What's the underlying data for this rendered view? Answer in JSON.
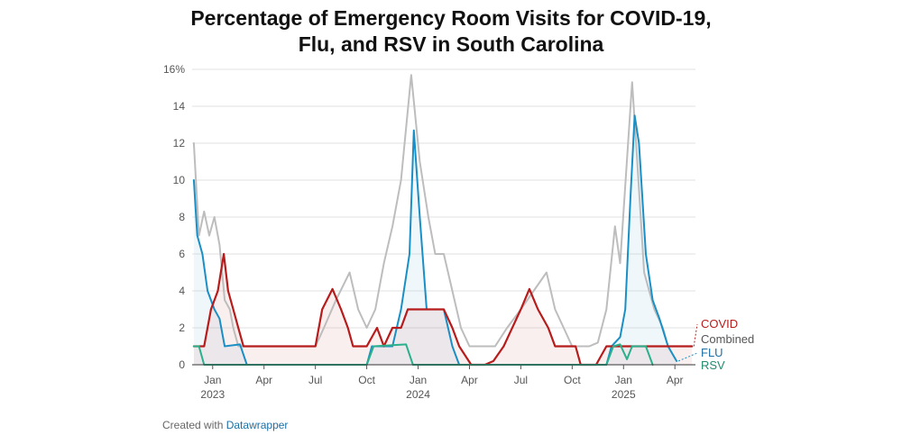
{
  "title_line1": "Percentage of Emergency Room Visits for COVID-19,",
  "title_line2": "Flu, and RSV in South Carolina",
  "footer": {
    "prefix": "Created with",
    "link": "Datawrapper"
  },
  "chart_data": {
    "type": "area",
    "title": "Percentage of Emergency Room Visits for COVID-19, Flu, and RSV in South Carolina",
    "ylim": [
      0,
      16
    ],
    "yticks": [
      0,
      2,
      4,
      6,
      8,
      10,
      12,
      14,
      16
    ],
    "ytick_labels": [
      "0",
      "2",
      "4",
      "6",
      "8",
      "10",
      "12",
      "14",
      "16%"
    ],
    "x_unit": "months since Oct 2022",
    "xlim": [
      1.8,
      31.2
    ],
    "xticks": [
      {
        "x": 3,
        "label": "Jan",
        "sub": "2023"
      },
      {
        "x": 6,
        "label": "Apr",
        "sub": ""
      },
      {
        "x": 9,
        "label": "Jul",
        "sub": ""
      },
      {
        "x": 12,
        "label": "Oct",
        "sub": ""
      },
      {
        "x": 15,
        "label": "Jan",
        "sub": "2024"
      },
      {
        "x": 18,
        "label": "Apr",
        "sub": ""
      },
      {
        "x": 21,
        "label": "Jul",
        "sub": ""
      },
      {
        "x": 24,
        "label": "Oct",
        "sub": ""
      },
      {
        "x": 27,
        "label": "Jan",
        "sub": "2025"
      },
      {
        "x": 30,
        "label": "Apr",
        "sub": ""
      }
    ],
    "series": [
      {
        "name": "Combined",
        "label": "Combined",
        "color": "#bdbdbd",
        "label_color": "#555555",
        "fill": false,
        "points": [
          [
            1.9,
            12
          ],
          [
            2.2,
            7
          ],
          [
            2.5,
            8.3
          ],
          [
            2.8,
            7
          ],
          [
            3.1,
            8
          ],
          [
            3.4,
            6.5
          ],
          [
            3.7,
            3.5
          ],
          [
            4,
            3
          ],
          [
            4.2,
            2
          ],
          [
            4.5,
            1
          ],
          [
            5.5,
            1
          ],
          [
            9,
            1
          ],
          [
            9.5,
            2
          ],
          [
            10.2,
            3.5
          ],
          [
            11,
            5
          ],
          [
            11.5,
            3
          ],
          [
            12,
            2
          ],
          [
            12.5,
            3
          ],
          [
            13,
            5.5
          ],
          [
            13.5,
            7.5
          ],
          [
            14,
            10
          ],
          [
            14.6,
            15.7
          ],
          [
            15.1,
            11
          ],
          [
            15.6,
            8
          ],
          [
            16,
            6
          ],
          [
            16.5,
            6
          ],
          [
            17,
            4
          ],
          [
            17.5,
            2
          ],
          [
            18,
            1
          ],
          [
            19.5,
            1
          ],
          [
            20.2,
            2
          ],
          [
            21,
            3
          ],
          [
            22.5,
            5
          ],
          [
            23,
            3
          ],
          [
            23.5,
            2
          ],
          [
            24,
            1
          ],
          [
            25,
            1
          ],
          [
            25.5,
            1.2
          ],
          [
            26,
            3
          ],
          [
            26.5,
            7.5
          ],
          [
            26.8,
            5.5
          ],
          [
            27.5,
            15.3
          ],
          [
            27.8,
            11
          ],
          [
            28.2,
            5
          ],
          [
            28.8,
            3
          ],
          [
            29.3,
            2
          ],
          [
            29.6,
            1
          ]
        ]
      },
      {
        "name": "FLU",
        "label": "FLU",
        "color": "#1a8fc5",
        "label_color": "#1d6fa5",
        "fill": true,
        "fill_color": "rgba(26,143,197,0.07)",
        "points": [
          [
            1.9,
            10
          ],
          [
            2.1,
            7
          ],
          [
            2.4,
            6
          ],
          [
            2.7,
            4
          ],
          [
            3.1,
            3
          ],
          [
            3.4,
            2.5
          ],
          [
            3.7,
            1
          ],
          [
            4.6,
            1.1
          ],
          [
            5,
            0
          ],
          [
            12,
            0
          ],
          [
            12.3,
            1
          ],
          [
            13.5,
            1
          ],
          [
            14,
            3
          ],
          [
            14.5,
            6
          ],
          [
            14.75,
            12.7
          ],
          [
            15.1,
            8
          ],
          [
            15.5,
            3
          ],
          [
            16,
            3
          ],
          [
            16.5,
            3
          ],
          [
            17,
            1
          ],
          [
            17.4,
            0
          ],
          [
            26,
            0
          ],
          [
            26.3,
            1
          ],
          [
            26.8,
            1.5
          ],
          [
            27.1,
            3
          ],
          [
            27.4,
            9
          ],
          [
            27.65,
            13.5
          ],
          [
            27.9,
            12
          ],
          [
            28.3,
            6
          ],
          [
            28.7,
            3.5
          ],
          [
            29.1,
            2.5
          ],
          [
            29.6,
            1
          ],
          [
            30.1,
            0.2
          ]
        ]
      },
      {
        "name": "COVID",
        "label": "COVID",
        "color": "#b71c1c",
        "label_color": "#b71c1c",
        "fill": true,
        "fill_color": "rgba(183,28,28,0.07)",
        "points": [
          [
            1.9,
            1
          ],
          [
            2.5,
            1
          ],
          [
            2.9,
            3
          ],
          [
            3.3,
            4
          ],
          [
            3.65,
            6
          ],
          [
            3.9,
            4
          ],
          [
            4.2,
            3
          ],
          [
            4.5,
            2
          ],
          [
            4.8,
            1
          ],
          [
            8.5,
            1
          ],
          [
            9,
            1
          ],
          [
            9.4,
            3
          ],
          [
            10,
            4.1
          ],
          [
            10.5,
            3
          ],
          [
            10.9,
            2
          ],
          [
            11.2,
            1
          ],
          [
            12,
            1
          ],
          [
            12.6,
            2
          ],
          [
            13,
            1
          ],
          [
            13.5,
            2
          ],
          [
            14,
            2
          ],
          [
            14.4,
            3
          ],
          [
            16.5,
            3
          ],
          [
            17,
            2
          ],
          [
            17.4,
            1
          ],
          [
            18.1,
            0
          ],
          [
            18.9,
            0
          ],
          [
            19.4,
            0.2
          ],
          [
            20,
            1
          ],
          [
            21,
            3
          ],
          [
            21.5,
            4.1
          ],
          [
            22,
            3
          ],
          [
            22.6,
            2
          ],
          [
            23,
            1
          ],
          [
            24.2,
            1
          ],
          [
            24.5,
            0
          ],
          [
            25.4,
            0
          ],
          [
            26,
            1
          ],
          [
            31,
            1
          ]
        ]
      },
      {
        "name": "RSV",
        "label": "RSV",
        "color": "#2bb08c",
        "label_color": "#238a6f",
        "fill": false,
        "points": [
          [
            1.9,
            1
          ],
          [
            2.2,
            1
          ],
          [
            2.5,
            0
          ],
          [
            12,
            0
          ],
          [
            12.4,
            1
          ],
          [
            14.3,
            1.1
          ],
          [
            14.7,
            0
          ],
          [
            26,
            0
          ],
          [
            26.4,
            1
          ],
          [
            26.8,
            1.1
          ],
          [
            27.2,
            0.3
          ],
          [
            27.5,
            1
          ],
          [
            28.3,
            1
          ],
          [
            28.7,
            0
          ]
        ]
      }
    ]
  }
}
